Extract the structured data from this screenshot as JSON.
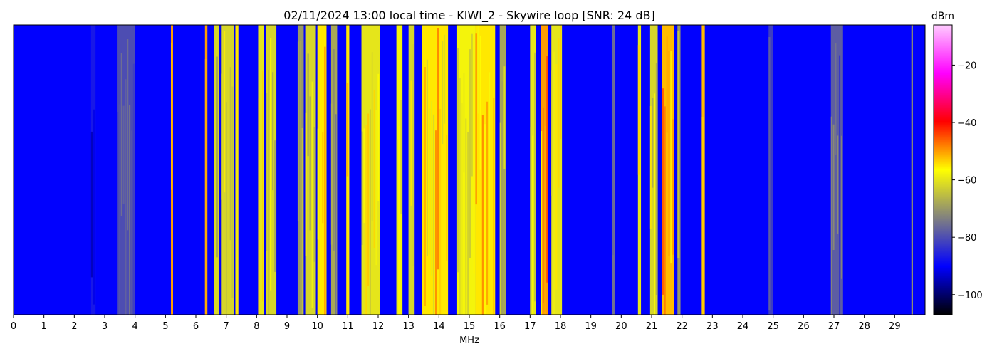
{
  "chart_data": {
    "type": "heatmap",
    "title": "02/11/2024 13:00 local time - KIWI_2 - Skywire loop [SNR: 24 dB]",
    "xlabel": "MHz",
    "ylabel": "",
    "xlim": [
      0,
      30
    ],
    "x_ticks": [
      "0",
      "1",
      "2",
      "3",
      "4",
      "5",
      "6",
      "7",
      "8",
      "9",
      "10",
      "11",
      "12",
      "13",
      "14",
      "15",
      "16",
      "17",
      "18",
      "19",
      "20",
      "21",
      "22",
      "23",
      "24",
      "25",
      "26",
      "27",
      "28",
      "29"
    ],
    "colorbar": {
      "label": "dBm",
      "range": [
        -107,
        -6
      ],
      "ticks": [
        -100,
        -80,
        -60,
        -40,
        -20
      ],
      "tick_labels": [
        "−100",
        "−80",
        "−60",
        "−40",
        "−20"
      ],
      "colors": [
        "#000000",
        "#0000ff",
        "#808080",
        "#ffff00",
        "#ff0000",
        "#ff00ff",
        "#ffccff"
      ]
    },
    "background_level_dbm": -90,
    "bands": [
      {
        "start": 2.55,
        "end": 2.7,
        "level_dbm": -87
      },
      {
        "start": 3.4,
        "end": 4.0,
        "level_dbm": -80
      },
      {
        "start": 5.18,
        "end": 5.25,
        "level_dbm": -50
      },
      {
        "start": 6.3,
        "end": 6.38,
        "level_dbm": -50
      },
      {
        "start": 6.6,
        "end": 6.75,
        "level_dbm": -62
      },
      {
        "start": 6.85,
        "end": 7.25,
        "level_dbm": -62
      },
      {
        "start": 7.3,
        "end": 7.4,
        "level_dbm": -55
      },
      {
        "start": 8.05,
        "end": 8.25,
        "level_dbm": -60
      },
      {
        "start": 8.3,
        "end": 8.65,
        "level_dbm": -62
      },
      {
        "start": 9.35,
        "end": 9.55,
        "level_dbm": -70
      },
      {
        "start": 9.6,
        "end": 9.95,
        "level_dbm": -62
      },
      {
        "start": 10.0,
        "end": 10.3,
        "level_dbm": -55
      },
      {
        "start": 10.45,
        "end": 10.65,
        "level_dbm": -68
      },
      {
        "start": 10.95,
        "end": 11.05,
        "level_dbm": -55
      },
      {
        "start": 11.45,
        "end": 12.05,
        "level_dbm": -60
      },
      {
        "start": 12.6,
        "end": 12.8,
        "level_dbm": -58
      },
      {
        "start": 13.0,
        "end": 13.2,
        "level_dbm": -62
      },
      {
        "start": 13.45,
        "end": 14.3,
        "level_dbm": -55
      },
      {
        "start": 14.6,
        "end": 15.2,
        "level_dbm": -58
      },
      {
        "start": 15.2,
        "end": 15.85,
        "level_dbm": -55
      },
      {
        "start": 16.0,
        "end": 16.2,
        "level_dbm": -68
      },
      {
        "start": 17.0,
        "end": 17.2,
        "level_dbm": -60
      },
      {
        "start": 17.35,
        "end": 17.6,
        "level_dbm": -50
      },
      {
        "start": 17.7,
        "end": 18.05,
        "level_dbm": -60
      },
      {
        "start": 19.7,
        "end": 19.78,
        "level_dbm": -75
      },
      {
        "start": 20.55,
        "end": 20.65,
        "level_dbm": -60
      },
      {
        "start": 20.95,
        "end": 21.2,
        "level_dbm": -62
      },
      {
        "start": 21.35,
        "end": 21.75,
        "level_dbm": -52
      },
      {
        "start": 21.85,
        "end": 21.95,
        "level_dbm": -70
      },
      {
        "start": 22.65,
        "end": 22.75,
        "level_dbm": -52
      },
      {
        "start": 24.85,
        "end": 25.0,
        "level_dbm": -82
      },
      {
        "start": 26.9,
        "end": 27.3,
        "level_dbm": -78
      },
      {
        "start": 29.55,
        "end": 29.6,
        "level_dbm": -70
      }
    ]
  }
}
